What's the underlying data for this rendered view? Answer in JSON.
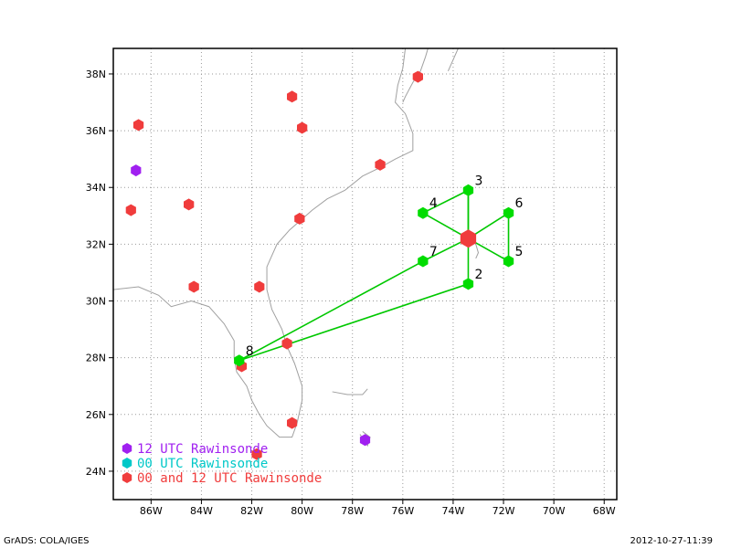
{
  "map": {
    "lon_range": [
      -87.5,
      -67.5
    ],
    "lat_range": [
      23.0,
      38.9
    ],
    "lon_ticks": [
      {
        "value": -86,
        "label": "86W"
      },
      {
        "value": -84,
        "label": "84W"
      },
      {
        "value": -82,
        "label": "82W"
      },
      {
        "value": -80,
        "label": "80W"
      },
      {
        "value": -78,
        "label": "78W"
      },
      {
        "value": -76,
        "label": "76W"
      },
      {
        "value": -74,
        "label": "74W"
      },
      {
        "value": -72,
        "label": "72W"
      },
      {
        "value": -70,
        "label": "70W"
      },
      {
        "value": -68,
        "label": "68W"
      }
    ],
    "lat_ticks": [
      {
        "value": 24,
        "label": "24N"
      },
      {
        "value": 26,
        "label": "26N"
      },
      {
        "value": 28,
        "label": "28N"
      },
      {
        "value": 30,
        "label": "30N"
      },
      {
        "value": 32,
        "label": "32N"
      },
      {
        "value": 34,
        "label": "34N"
      },
      {
        "value": 36,
        "label": "36N"
      },
      {
        "value": 38,
        "label": "38N"
      }
    ],
    "grid": true
  },
  "colors": {
    "utc12": "#a020f0",
    "utc00": "#00c8c8",
    "both": "#f03c3c",
    "dropsonde": "#00dc00",
    "track": "#00c800",
    "coast": "#a0a0a0"
  },
  "center": {
    "lon": -73.4,
    "lat": 32.2
  },
  "stations": [
    {
      "lon": -75.4,
      "lat": 37.9,
      "type": "both"
    },
    {
      "lon": -80.4,
      "lat": 37.2,
      "type": "both"
    },
    {
      "lon": -80.0,
      "lat": 36.1,
      "type": "both"
    },
    {
      "lon": -86.5,
      "lat": 36.2,
      "type": "both"
    },
    {
      "lon": -76.9,
      "lat": 34.8,
      "type": "both"
    },
    {
      "lon": -86.6,
      "lat": 34.6,
      "type": "utc12"
    },
    {
      "lon": -84.5,
      "lat": 33.4,
      "type": "both"
    },
    {
      "lon": -86.8,
      "lat": 33.2,
      "type": "both"
    },
    {
      "lon": -80.1,
      "lat": 32.9,
      "type": "both"
    },
    {
      "lon": -84.3,
      "lat": 30.5,
      "type": "both"
    },
    {
      "lon": -81.7,
      "lat": 30.5,
      "type": "both"
    },
    {
      "lon": -80.6,
      "lat": 28.5,
      "type": "both"
    },
    {
      "lon": -82.4,
      "lat": 27.7,
      "type": "both"
    },
    {
      "lon": -80.4,
      "lat": 25.7,
      "type": "both"
    },
    {
      "lon": -81.8,
      "lat": 24.6,
      "type": "both"
    },
    {
      "lon": -77.5,
      "lat": 25.1,
      "type": "utc12"
    }
  ],
  "dropsondes": [
    {
      "id": "2",
      "lon": -73.4,
      "lat": 30.6
    },
    {
      "id": "3",
      "lon": -73.4,
      "lat": 33.9
    },
    {
      "id": "4",
      "lon": -75.2,
      "lat": 33.1
    },
    {
      "id": "5",
      "lon": -71.8,
      "lat": 31.4
    },
    {
      "id": "6",
      "lon": -71.8,
      "lat": 33.1
    },
    {
      "id": "7",
      "lon": -75.2,
      "lat": 31.4
    },
    {
      "id": "8",
      "lon": -82.5,
      "lat": 27.9
    }
  ],
  "track_segments": [
    [
      "3",
      "4"
    ],
    [
      "4",
      "C"
    ],
    [
      "C",
      "3"
    ],
    [
      "3",
      "C"
    ],
    [
      "C",
      "2"
    ],
    [
      "6",
      "5"
    ],
    [
      "6",
      "C"
    ],
    [
      "C",
      "5"
    ],
    [
      "C",
      "7"
    ],
    [
      "7",
      "8"
    ],
    [
      "8",
      "2"
    ]
  ],
  "legend": [
    {
      "type": "utc12",
      "label": "12 UTC Rawinsonde"
    },
    {
      "type": "utc00",
      "label": "00 UTC Rawinsonde"
    },
    {
      "type": "both",
      "label": "00 and 12 UTC Rawinsonde"
    }
  ],
  "footer": {
    "left": "GrADS: COLA/IGES",
    "right": "2012-10-27-11:39"
  }
}
